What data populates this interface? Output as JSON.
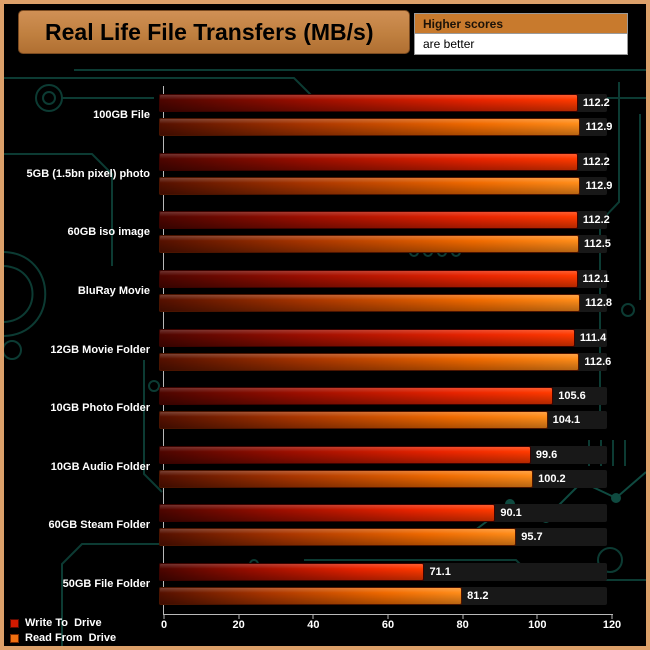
{
  "title": "Real Life File Transfers (MB/s)",
  "note": {
    "line1": "Higher scores",
    "line2": "are better"
  },
  "legend": {
    "write_label": "Write To  Drive",
    "read_label": "Read From  Drive"
  },
  "chart_data": {
    "type": "bar",
    "orientation": "horizontal",
    "title": "Real Life File Transfers (MB/s)",
    "xlabel": "",
    "xlim": [
      0,
      120
    ],
    "xticks": [
      0,
      20,
      40,
      60,
      80,
      100,
      120
    ],
    "grid": false,
    "legend_position": "bottom-left",
    "categories": [
      "100GB File",
      "5GB (1.5bn pixel) photo",
      "60GB iso image",
      "BluRay Movie",
      "12GB Movie Folder",
      "10GB Photo Folder",
      "10GB Audio Folder",
      "60GB Steam Folder",
      "50GB File Folder"
    ],
    "series": [
      {
        "name": "Write To Drive",
        "key": "write",
        "color_start": "#4d0500",
        "color_end": "#ff3a00",
        "values": [
          112.2,
          112.2,
          112.2,
          112.1,
          111.4,
          105.6,
          99.6,
          90.1,
          71.1
        ]
      },
      {
        "name": "Read From Drive",
        "key": "read",
        "color_start": "#551000",
        "color_end": "#ff8d1a",
        "values": [
          112.9,
          112.9,
          112.5,
          112.8,
          112.6,
          104.1,
          100.2,
          95.7,
          81.2
        ]
      }
    ]
  },
  "colors": {
    "background": "#000000",
    "frame_border": "#dca06a",
    "title_bg": "#c98849",
    "note_bg": "#c87a2d",
    "note_bg2": "#ffffff",
    "circuit": "#0c3b33",
    "axis": "#b9b9b9",
    "bar_track": "#181818"
  }
}
